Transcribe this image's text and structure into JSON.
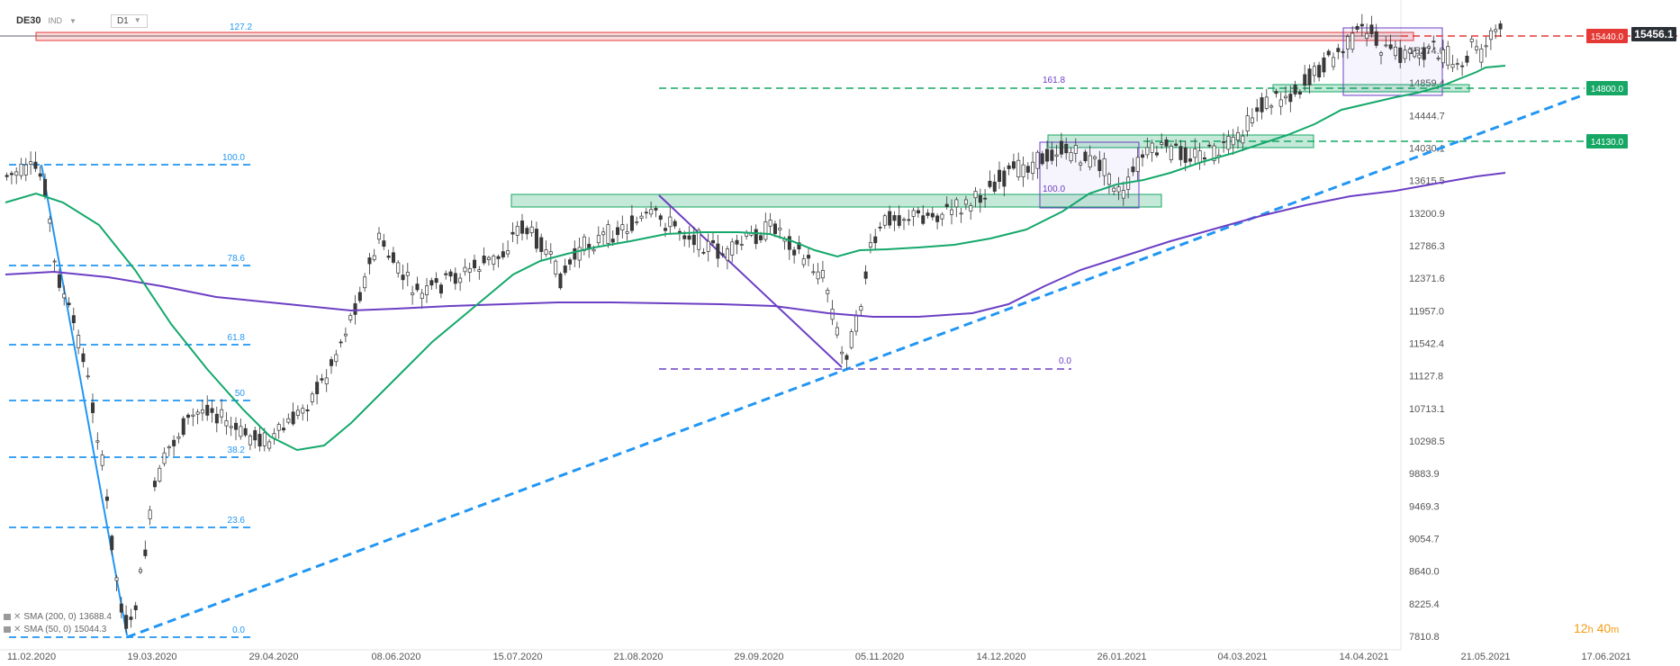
{
  "header": {
    "symbol": "DE30",
    "type": "IND",
    "timeframe": "D1"
  },
  "timer": {
    "hours": "12",
    "h": "h",
    "mins": "40",
    "m": "m"
  },
  "legend": [
    {
      "label": "SMA (200, 0)",
      "value": "13688.4",
      "color": "#6c3fc4"
    },
    {
      "label": "SMA (50, 0)",
      "value": "15044.3",
      "color": "#14a86b"
    }
  ],
  "chart_data": {
    "type": "candlestick",
    "y_ticks": [
      "15274.0",
      "14859.4",
      "14444.7",
      "14030.1",
      "13615.5",
      "13200.9",
      "12786.3",
      "12371.6",
      "11957.0",
      "11542.4",
      "11127.8",
      "10713.1",
      "10298.5",
      "9883.9",
      "9469.3",
      "9054.7",
      "8640.0",
      "8225.4",
      "7810.8"
    ],
    "y_tick_values": [
      15274.0,
      14859.4,
      14444.7,
      14030.1,
      13615.5,
      13200.9,
      12786.3,
      12371.6,
      11957.0,
      11542.4,
      11127.8,
      10713.1,
      10298.5,
      9883.9,
      9469.3,
      9054.7,
      8640.0,
      8225.4,
      7810.8
    ],
    "x_ticks": [
      "11.02.2020",
      "19.03.2020",
      "29.04.2020",
      "08.06.2020",
      "15.07.2020",
      "21.08.2020",
      "29.09.2020",
      "05.11.2020",
      "14.12.2020",
      "26.01.2021",
      "04.03.2021",
      "14.04.2021",
      "21.05.2021",
      "17.06.2021"
    ],
    "price_labels": [
      {
        "text": "15456.1",
        "value": 15456.1,
        "bg": "#2b2f36"
      },
      {
        "text": "15440.0",
        "value": 15440.0,
        "bg": "#e53935"
      },
      {
        "text": "14800.0",
        "value": 14800.0,
        "bg": "#16a765"
      },
      {
        "text": "14130.0",
        "value": 14130.0,
        "bg": "#16a765"
      }
    ],
    "fib_labels_blue": [
      "127.2",
      "100.0",
      "78.6",
      "61.8",
      "50",
      "38.2",
      "23.6",
      "0.0"
    ],
    "fib_labels_purple": [
      "161.8",
      "100.0",
      "0.0"
    ],
    "series": [
      {
        "name": "DE30",
        "start": 13750,
        "low_point": 8250,
        "end": 15456.1
      },
      {
        "name": "SMA (200, 0)",
        "last": 13688.4
      },
      {
        "name": "SMA (50, 0)",
        "last": 15044.3
      }
    ]
  }
}
